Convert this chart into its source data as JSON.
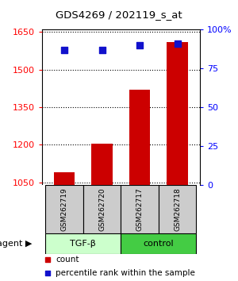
{
  "title": "GDS4269 / 202119_s_at",
  "samples": [
    "GSM262719",
    "GSM262720",
    "GSM262717",
    "GSM262718"
  ],
  "group_labels": [
    "TGF-β",
    "control"
  ],
  "count_values": [
    1090,
    1205,
    1420,
    1610
  ],
  "percentile_values": [
    87,
    87,
    90,
    91
  ],
  "bar_color": "#cc0000",
  "dot_color": "#1111cc",
  "ylim_left": [
    1040,
    1660
  ],
  "ylim_right": [
    0,
    100
  ],
  "yticks_left": [
    1050,
    1200,
    1350,
    1500,
    1650
  ],
  "yticks_right": [
    0,
    25,
    50,
    75,
    100
  ],
  "ytick_labels_right": [
    "0",
    "25",
    "50",
    "75",
    "100%"
  ],
  "tgf_color": "#ccffcc",
  "control_color": "#44cc44",
  "sample_bg_color": "#cccccc",
  "legend_count_color": "#cc0000",
  "legend_pct_color": "#1111cc"
}
